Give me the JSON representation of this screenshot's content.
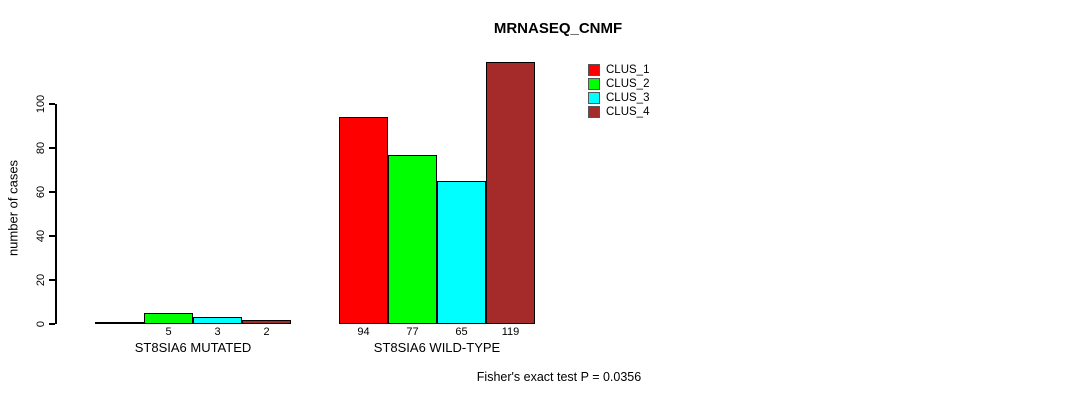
{
  "title": "MRNASEQ_CNMF",
  "annotation": "Fisher's exact test P = 0.0356",
  "axis_color": "#000000",
  "background_color": "#ffffff",
  "chart_data": {
    "type": "bar",
    "title": "MRNASEQ_CNMF",
    "xlabel": "",
    "ylabel": "number of cases",
    "categories": [
      "ST8SIA6 MUTATED",
      "ST8SIA6 WILD-TYPE"
    ],
    "series": [
      {
        "name": "CLUS_1",
        "color": "#FF0000",
        "values": [
          0,
          94
        ]
      },
      {
        "name": "CLUS_2",
        "color": "#00FF00",
        "values": [
          5,
          77
        ]
      },
      {
        "name": "CLUS_3",
        "color": "#00FFFF",
        "values": [
          3,
          65
        ]
      },
      {
        "name": "CLUS_4",
        "color": "#A52A2A",
        "values": [
          2,
          119
        ]
      }
    ],
    "bar_value_labels": [
      [
        "",
        "5",
        "3",
        "2"
      ],
      [
        "94",
        "77",
        "65",
        "119"
      ]
    ],
    "yticks": [
      0,
      20,
      40,
      60,
      80,
      100
    ],
    "ylim": [
      0,
      120
    ],
    "grid": false,
    "legend_position": "top-right",
    "legend_entries": [
      "CLUS_1",
      "CLUS_2",
      "CLUS_3",
      "CLUS_4"
    ],
    "annotation": "Fisher's exact test P = 0.0356"
  }
}
